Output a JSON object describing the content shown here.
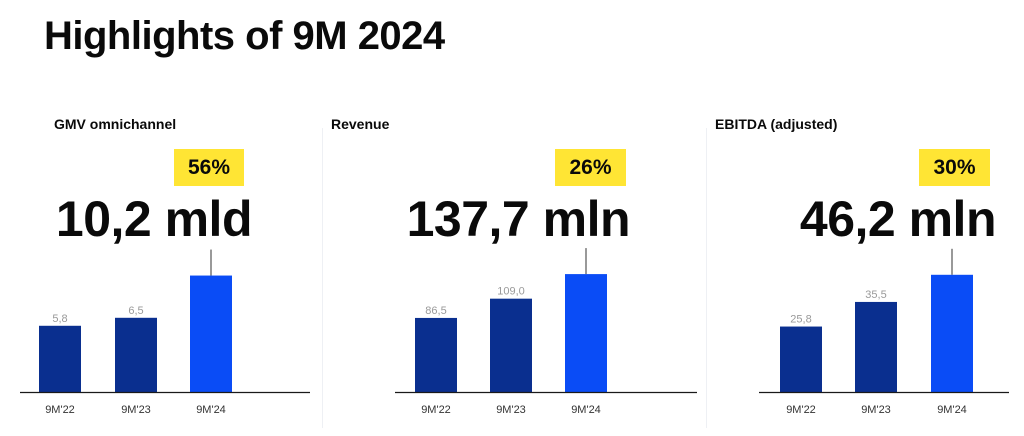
{
  "page": {
    "title": "Highlights of 9M 2024"
  },
  "colors": {
    "bar_dark": "#0a2f8f",
    "bar_accent": "#0a4cf6",
    "badge": "#ffe534",
    "axis": "#1a1a1a",
    "whisker": "#555555"
  },
  "panels": [
    {
      "title": "GMV omnichannel",
      "growth": "56%",
      "kpi": "10,2 mld"
    },
    {
      "title": "Revenue",
      "growth": "26%",
      "kpi": "137,7 mln"
    },
    {
      "title": "EBITDA (adjusted)",
      "growth": "30%",
      "kpi": "46,2 mln"
    }
  ],
  "chart_data": [
    {
      "type": "bar",
      "title": "GMV omnichannel",
      "categories": [
        "9M'22",
        "9M'23",
        "9M'24"
      ],
      "values": [
        5.8,
        6.5,
        10.2
      ],
      "data_labels": [
        "5,8",
        "6,5",
        ""
      ],
      "ylim": [
        0,
        12
      ]
    },
    {
      "type": "bar",
      "title": "Revenue",
      "categories": [
        "9M'22",
        "9M'23",
        "9M'24"
      ],
      "values": [
        86.5,
        109.0,
        137.7
      ],
      "data_labels": [
        "86,5",
        "109,0",
        ""
      ],
      "ylim": [
        0,
        160
      ]
    },
    {
      "type": "bar",
      "title": "EBITDA (adjusted)",
      "categories": [
        "9M'22",
        "9M'23",
        "9M'24"
      ],
      "values": [
        25.8,
        35.5,
        46.2
      ],
      "data_labels": [
        "25,8",
        "35,5",
        ""
      ],
      "ylim": [
        0,
        54
      ]
    }
  ]
}
